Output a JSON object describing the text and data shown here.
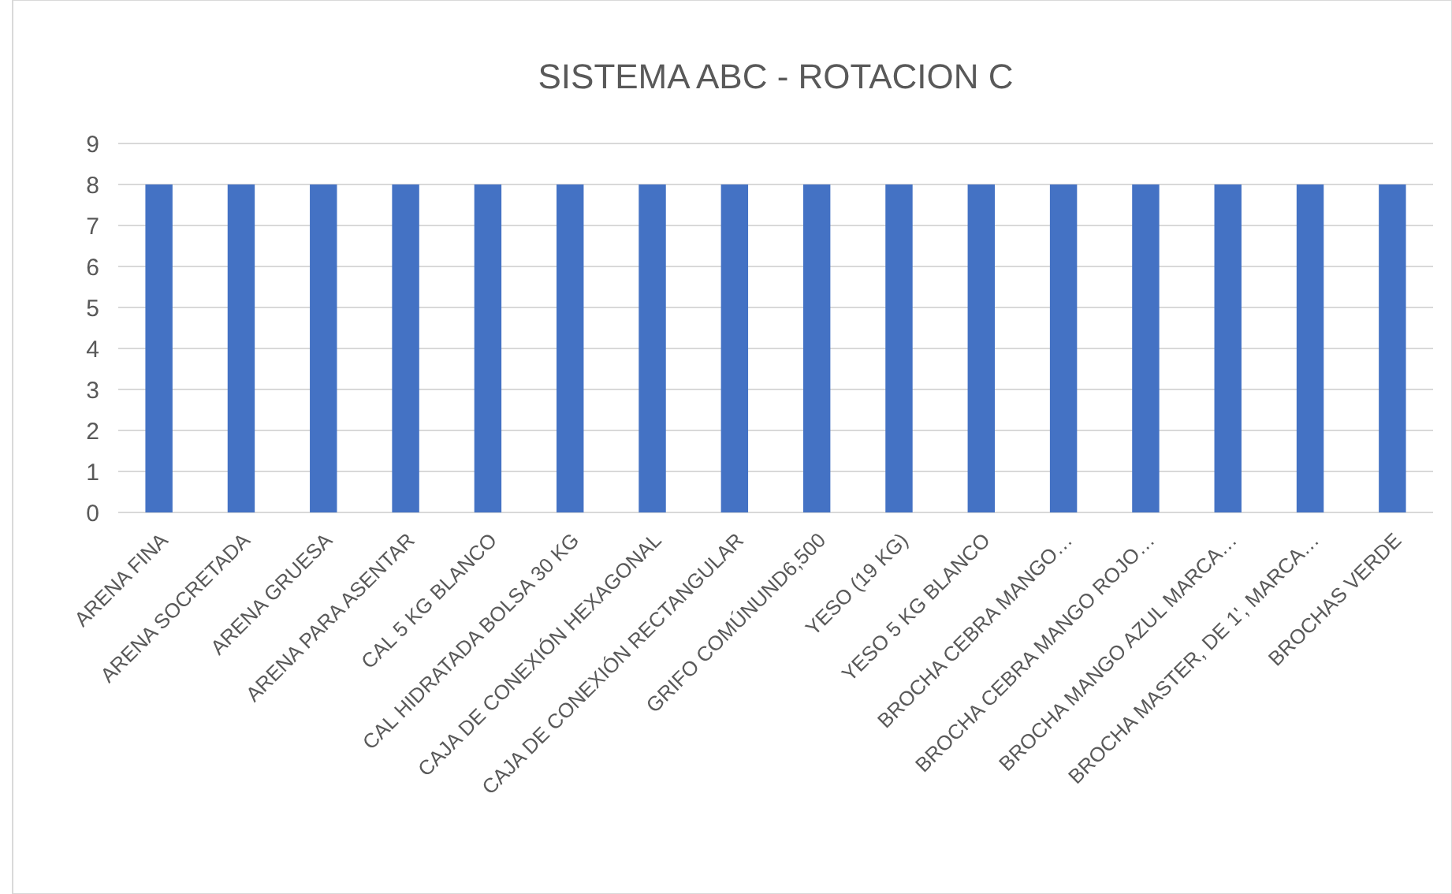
{
  "chart_data": {
    "type": "bar",
    "title": "SISTEMA ABC - ROTACION C",
    "categories": [
      "ARENA FINA",
      "ARENA SOCRETADA",
      "ARENA GRUESA",
      "ARENA PARA ASENTAR",
      "CAL 5 KG BLANCO",
      "CAL HIDRATADA BOLSA 30 KG",
      "CAJA DE CONEXIÓN HEXAGONAL",
      "CAJA DE CONEXIÓN RECTANGULAR",
      "GRIFO COMÚNUND6,500",
      "YESO (19 KG)",
      "YESO 5 KG BLANCO",
      "BROCHA CEBRA MANGO…",
      "BROCHA CEBRA MANGO ROJO…",
      "BROCHA MANGO AZUL MARCA…",
      "BROCHA MASTER, DE 1', MARCA…",
      "BROCHAS VERDE"
    ],
    "values": [
      8,
      8,
      8,
      8,
      8,
      8,
      8,
      8,
      8,
      8,
      8,
      8,
      8,
      8,
      8,
      8
    ],
    "color": "#4472c4",
    "ylim": [
      0,
      9
    ],
    "yticks": [
      0,
      1,
      2,
      3,
      4,
      5,
      6,
      7,
      8,
      9
    ],
    "grid": "y"
  }
}
